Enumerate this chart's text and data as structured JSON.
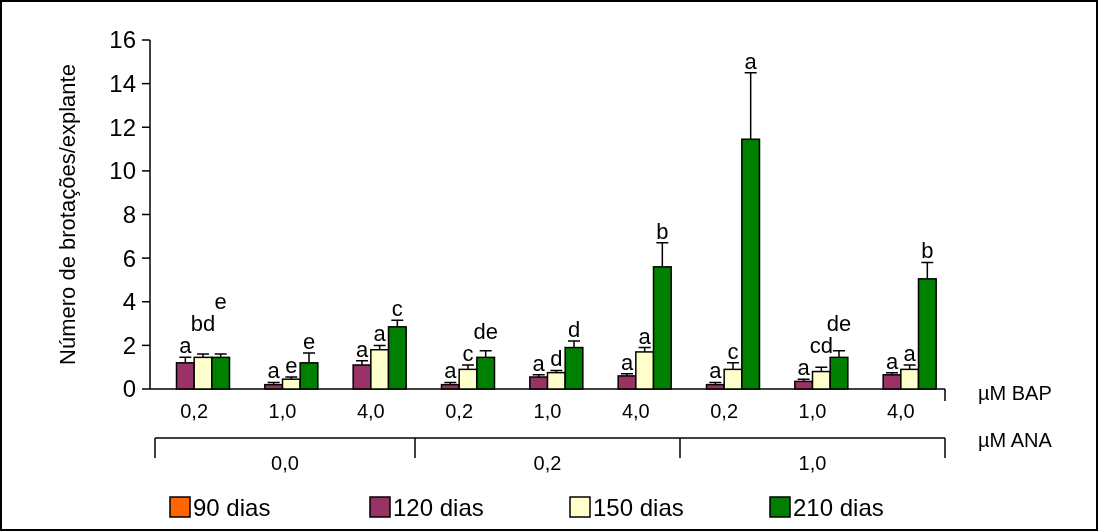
{
  "chart_data": {
    "type": "bar",
    "ylabel": "Número de brotações/explante",
    "xlabel": "µM BAP",
    "categories": [
      "0,2",
      "1,0",
      "4,0",
      "0,2",
      "1,0",
      "4,0",
      "0,2",
      "1,0",
      "4,0"
    ],
    "annotations": [
      "0,0",
      "0,2",
      "1,0",
      "µM ANA"
    ],
    "series": [
      {
        "name": "90 dias",
        "color": "#ff6600",
        "values": [
          null,
          null,
          null,
          null,
          null,
          null,
          null,
          null,
          null
        ]
      },
      {
        "name": "120 dias",
        "color": "#993366",
        "values": [
          1.2,
          0.2,
          1.1,
          0.2,
          0.55,
          0.6,
          0.2,
          0.35,
          0.65
        ],
        "errors": [
          0.25,
          0.1,
          0.2,
          0.1,
          0.1,
          0.1,
          0.1,
          0.1,
          0.1
        ],
        "value_labels": [
          "a",
          "a",
          "a",
          "a",
          "a",
          "a",
          "a",
          "a",
          "a"
        ]
      },
      {
        "name": "150 dias",
        "color": "#ffffcc",
        "values": [
          1.45,
          0.45,
          1.8,
          0.9,
          0.75,
          1.7,
          0.9,
          0.8,
          0.9
        ],
        "errors": [
          0.15,
          0.1,
          0.2,
          0.2,
          0.1,
          0.2,
          0.3,
          0.2,
          0.2
        ],
        "value_labels": [
          "bd",
          "e",
          "a",
          "c",
          "d",
          "a",
          "c",
          "cd",
          "a"
        ]
      },
      {
        "name": "210 dias",
        "color": "#008000",
        "values": [
          1.45,
          1.2,
          2.85,
          1.45,
          1.9,
          5.6,
          11.45,
          1.45,
          5.05
        ],
        "errors": [
          0.15,
          0.45,
          0.3,
          0.3,
          0.3,
          1.1,
          3.05,
          0.3,
          0.75
        ],
        "value_labels": [
          "e",
          "e",
          "c",
          "de",
          "d",
          "b",
          "a",
          "de",
          "b"
        ]
      }
    ],
    "ylim": [
      0,
      16
    ],
    "yticks": [
      0,
      2,
      4,
      6,
      8,
      10,
      12,
      14,
      16
    ],
    "legend": "bottom",
    "grid": false
  }
}
